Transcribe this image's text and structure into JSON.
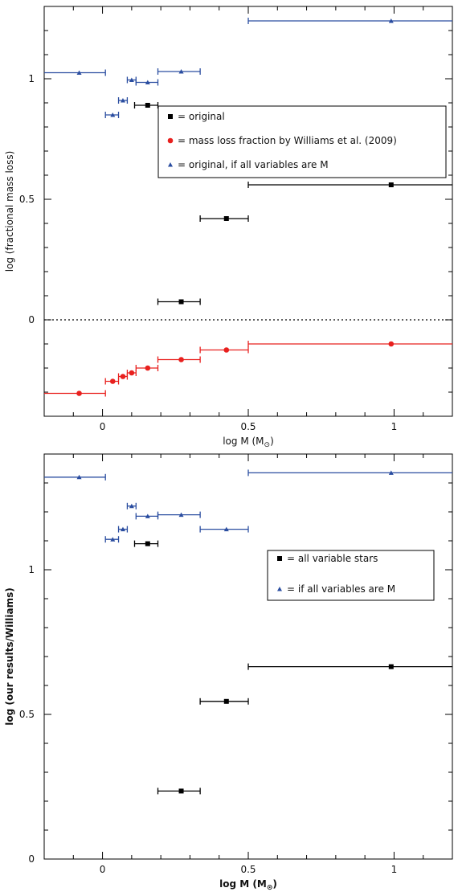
{
  "chart_data": [
    {
      "type": "scatter",
      "title": "",
      "xlabel": "log M (M",
      "xlabel_sub": "⊙",
      "xlabel_close": ")",
      "ylabel": "log (fractional mass loss)",
      "xlim": [
        -0.2,
        1.2
      ],
      "ylim": [
        -0.4,
        1.3
      ],
      "xticks": [
        0,
        0.5,
        1
      ],
      "xtick_labels": [
        "0",
        "0.5",
        "1"
      ],
      "yticks": [
        0,
        0.5,
        1
      ],
      "ytick_labels": [
        "0",
        "0.5",
        "1"
      ],
      "reference_line": {
        "y": 0,
        "style": "dotted"
      },
      "grid": false,
      "legend": {
        "placement": "center-right",
        "entries": [
          {
            "label": "= original",
            "marker": "square",
            "color": "#000000"
          },
          {
            "label": "= mass loss fraction by Williams et al. (2009)",
            "marker": "circle",
            "color": "#e8201e"
          },
          {
            "label": "= original, if all variables are M",
            "marker": "triangle",
            "color": "#2a4da0"
          }
        ]
      },
      "series": [
        {
          "color": "#000000",
          "marker": "square",
          "points": [
            {
              "x": 0.155,
              "y": 0.89,
              "xmin": 0.11,
              "xmax": 0.19
            },
            {
              "x": 0.27,
              "y": 0.075,
              "xmin": 0.19,
              "xmax": 0.335
            },
            {
              "x": 0.425,
              "y": 0.42,
              "xmin": 0.335,
              "xmax": 0.5
            },
            {
              "x": 0.99,
              "y": 0.56,
              "xmin": 0.5,
              "xmax": 1.2
            }
          ]
        },
        {
          "color": "#e8201e",
          "marker": "circle",
          "points": [
            {
              "x": -0.08,
              "y": -0.305,
              "xmin": -0.2,
              "xmax": 0.01
            },
            {
              "x": 0.035,
              "y": -0.255,
              "xmin": 0.01,
              "xmax": 0.055
            },
            {
              "x": 0.07,
              "y": -0.235,
              "xmin": 0.055,
              "xmax": 0.085
            },
            {
              "x": 0.1,
              "y": -0.22,
              "xmin": 0.085,
              "xmax": 0.115
            },
            {
              "x": 0.155,
              "y": -0.2,
              "xmin": 0.115,
              "xmax": 0.19
            },
            {
              "x": 0.27,
              "y": -0.165,
              "xmin": 0.19,
              "xmax": 0.335
            },
            {
              "x": 0.425,
              "y": -0.125,
              "xmin": 0.335,
              "xmax": 0.5
            },
            {
              "x": 0.99,
              "y": -0.1,
              "xmin": 0.5,
              "xmax": 1.2
            }
          ]
        },
        {
          "color": "#2a4da0",
          "marker": "triangle",
          "points": [
            {
              "x": -0.08,
              "y": 1.025,
              "xmin": -0.2,
              "xmax": 0.01
            },
            {
              "x": 0.035,
              "y": 0.85,
              "xmin": 0.01,
              "xmax": 0.055
            },
            {
              "x": 0.07,
              "y": 0.91,
              "xmin": 0.055,
              "xmax": 0.085
            },
            {
              "x": 0.1,
              "y": 0.995,
              "xmin": 0.085,
              "xmax": 0.115
            },
            {
              "x": 0.155,
              "y": 0.985,
              "xmin": 0.115,
              "xmax": 0.19
            },
            {
              "x": 0.27,
              "y": 1.03,
              "xmin": 0.19,
              "xmax": 0.335
            },
            {
              "x": 0.99,
              "y": 1.24,
              "xmin": 0.5,
              "xmax": 1.2
            }
          ]
        }
      ]
    },
    {
      "type": "scatter",
      "title": "",
      "xlabel": "log M (M",
      "xlabel_sub": "⊙",
      "xlabel_close": ")",
      "ylabel": "log (our results/Williams)",
      "xlim": [
        -0.2,
        1.2
      ],
      "ylim": [
        0,
        1.4
      ],
      "xticks": [
        0,
        0.5,
        1
      ],
      "xtick_labels": [
        "0",
        "0.5",
        "1"
      ],
      "yticks": [
        0,
        0.5,
        1
      ],
      "ytick_labels": [
        "0",
        "0.5",
        "1"
      ],
      "grid": false,
      "legend": {
        "placement": "right",
        "entries": [
          {
            "label": "= all variable stars",
            "marker": "square",
            "color": "#000000"
          },
          {
            "label": "= if all variables are M",
            "marker": "triangle",
            "color": "#2a4da0"
          }
        ]
      },
      "series": [
        {
          "color": "#000000",
          "marker": "square",
          "points": [
            {
              "x": 0.155,
              "y": 1.09,
              "xmin": 0.11,
              "xmax": 0.19
            },
            {
              "x": 0.27,
              "y": 0.235,
              "xmin": 0.19,
              "xmax": 0.335
            },
            {
              "x": 0.425,
              "y": 0.545,
              "xmin": 0.335,
              "xmax": 0.5
            },
            {
              "x": 0.99,
              "y": 0.665,
              "xmin": 0.5,
              "xmax": 1.2
            }
          ]
        },
        {
          "color": "#2a4da0",
          "marker": "triangle",
          "points": [
            {
              "x": -0.08,
              "y": 1.32,
              "xmin": -0.2,
              "xmax": 0.01
            },
            {
              "x": 0.035,
              "y": 1.105,
              "xmin": 0.01,
              "xmax": 0.055
            },
            {
              "x": 0.07,
              "y": 1.14,
              "xmin": 0.055,
              "xmax": 0.085
            },
            {
              "x": 0.1,
              "y": 1.22,
              "xmin": 0.085,
              "xmax": 0.115
            },
            {
              "x": 0.155,
              "y": 1.185,
              "xmin": 0.115,
              "xmax": 0.19
            },
            {
              "x": 0.27,
              "y": 1.19,
              "xmin": 0.19,
              "xmax": 0.335
            },
            {
              "x": 0.425,
              "y": 1.14,
              "xmin": 0.335,
              "xmax": 0.5
            },
            {
              "x": 0.99,
              "y": 1.335,
              "xmin": 0.5,
              "xmax": 1.2
            }
          ]
        }
      ]
    }
  ]
}
